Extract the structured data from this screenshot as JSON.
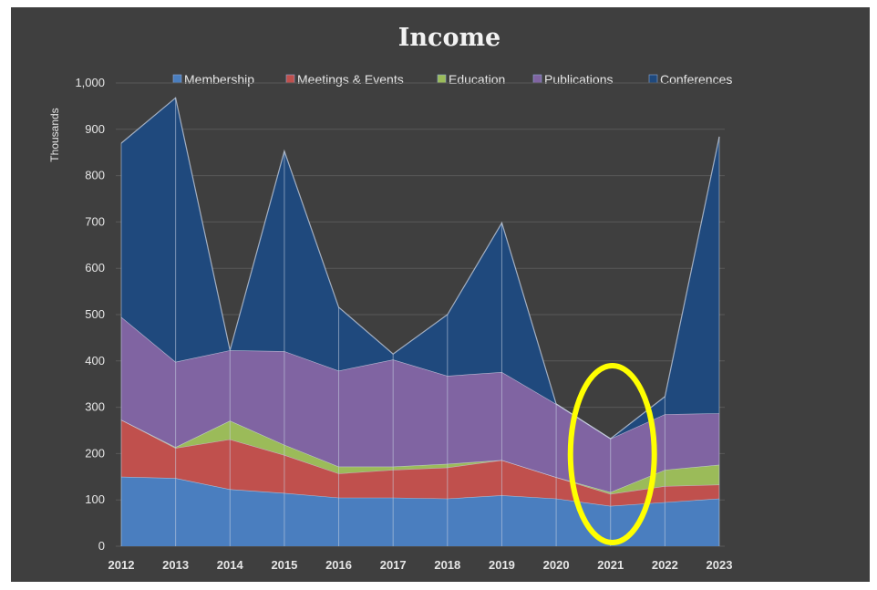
{
  "chart_data": {
    "type": "area",
    "stacked": true,
    "title": "Income",
    "xlabel": "",
    "ylabel": "Thousands",
    "ylim": [
      0,
      1000
    ],
    "yticks": [
      0,
      100,
      200,
      300,
      400,
      500,
      600,
      700,
      800,
      900,
      1000
    ],
    "ytick_labels": [
      "0",
      "100",
      "200",
      "300",
      "400",
      "500",
      "600",
      "700",
      "800",
      "900",
      "1,000"
    ],
    "categories": [
      "2012",
      "2013",
      "2014",
      "2015",
      "2016",
      "2017",
      "2018",
      "2019",
      "2020",
      "2021",
      "2022",
      "2023"
    ],
    "grid": true,
    "legend_position": "top",
    "series": [
      {
        "name": "Membership",
        "color": "#4a7ebf",
        "values": [
          150,
          147,
          123,
          115,
          105,
          105,
          103,
          110,
          103,
          87,
          95,
          103
        ]
      },
      {
        "name": "Meetings & Events",
        "color": "#c0504d",
        "values": [
          123,
          65,
          108,
          82,
          52,
          60,
          67,
          76,
          46,
          26,
          35,
          30
        ]
      },
      {
        "name": "Education",
        "color": "#9bbb59",
        "values": [
          0,
          2,
          40,
          22,
          15,
          7,
          8,
          0,
          0,
          4,
          35,
          43
        ]
      },
      {
        "name": "Publications",
        "color": "#8064a2",
        "values": [
          222,
          184,
          152,
          202,
          207,
          231,
          190,
          190,
          158,
          115,
          120,
          111
        ]
      },
      {
        "name": "Conferences",
        "color": "#1f497d",
        "values": [
          375,
          570,
          0,
          432,
          137,
          12,
          132,
          322,
          0,
          0,
          38,
          597
        ]
      }
    ],
    "annotations": [
      {
        "type": "ellipse",
        "target_category": "2021",
        "color": "#ffff00"
      }
    ]
  }
}
